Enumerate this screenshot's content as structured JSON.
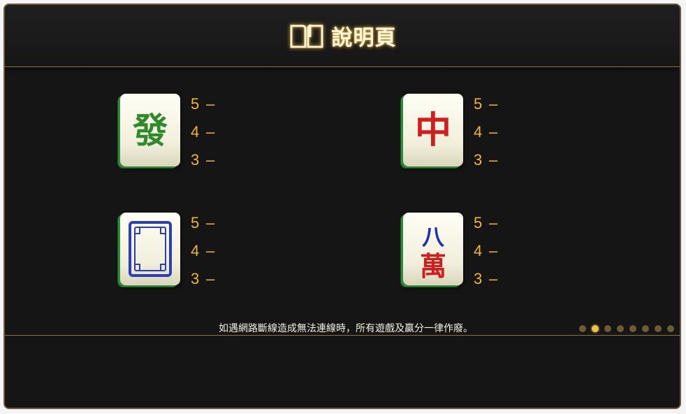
{
  "header": {
    "title": "說明頁",
    "icon": "open-book-icon"
  },
  "symbols": [
    {
      "name": "green-dragon-tile",
      "glyph": "發",
      "glyph_color": "#2f8a2c",
      "payouts": [
        {
          "count": "5",
          "value": "–"
        },
        {
          "count": "4",
          "value": "–"
        },
        {
          "count": "3",
          "value": "–"
        }
      ]
    },
    {
      "name": "red-dragon-tile",
      "glyph": "中",
      "glyph_color": "#d21d1d",
      "payouts": [
        {
          "count": "5",
          "value": "–"
        },
        {
          "count": "4",
          "value": "–"
        },
        {
          "count": "3",
          "value": "–"
        }
      ]
    },
    {
      "name": "white-dragon-tile",
      "glyph": "",
      "glyph_color": "#2b3fb0",
      "payouts": [
        {
          "count": "5",
          "value": "–"
        },
        {
          "count": "4",
          "value": "–"
        },
        {
          "count": "3",
          "value": "–"
        }
      ]
    },
    {
      "name": "eight-wan-tile",
      "glyph": "八萬",
      "glyph_color": "#d21d1d",
      "payouts": [
        {
          "count": "5",
          "value": "–"
        },
        {
          "count": "4",
          "value": "–"
        },
        {
          "count": "3",
          "value": "–"
        }
      ]
    }
  ],
  "notice": "如遇網路斷線造成無法連線時，所有遊戲及贏分一律作廢。",
  "pagination": {
    "total_pages": 8,
    "current_page": 2
  },
  "colors": {
    "accent_gold": "#f0b536",
    "background": "#151515",
    "border": "#8a7346"
  }
}
